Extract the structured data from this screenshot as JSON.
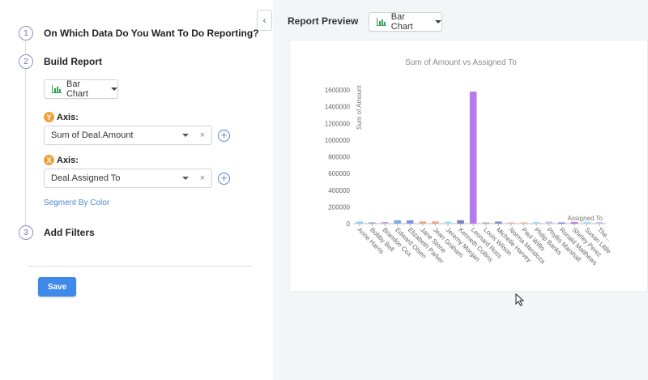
{
  "steps": [
    {
      "num": "1",
      "title": "On Which Data Do You Want To Do Reporting?"
    },
    {
      "num": "2",
      "title": "Build Report"
    },
    {
      "num": "3",
      "title": "Add Filters"
    }
  ],
  "build": {
    "chart_type_label": "Bar Chart",
    "y_axis": {
      "badge": "Y",
      "label": "Axis:",
      "value": "Sum of Deal.Amount"
    },
    "x_axis": {
      "badge": "X",
      "label": "Axis:",
      "value": "Deal.Assigned To"
    },
    "clear_glyph": "×",
    "plus_glyph": "+",
    "segment_link": "Segment By Color"
  },
  "save_label": "Save",
  "collapse_glyph": "‹",
  "preview": {
    "title": "Report Preview",
    "chart_type_label": "Bar Chart"
  },
  "colors": {
    "accent": "#3f8ae8",
    "axis_badge": "#f0a23c",
    "bar_highlight": "#b57bea"
  },
  "chart_data": {
    "type": "bar",
    "title": "Sum of Amount vs Assigned To",
    "xlabel": "Assigned To",
    "ylabel": "Sum of Amount",
    "ylim": [
      0,
      1700000
    ],
    "yticks": [
      "0",
      "200000",
      "400000",
      "600000",
      "800000",
      "1000000",
      "1200000",
      "1400000",
      "1600000"
    ],
    "ytick_values": [
      0,
      200000,
      400000,
      600000,
      800000,
      1000000,
      1200000,
      1400000,
      1600000
    ],
    "categories": [
      "Anne Harris",
      "Bobby Bell",
      "Brandon Cox",
      "Edward Olsen",
      "Elizabeth Parker",
      "Jane Stone",
      "Jean Graham",
      "Jeremy Morgan",
      "Kenneth Collins",
      "Leonard Ross",
      "Louis Wilson",
      "Michelle Harvey",
      "Norma Mendoza",
      "Paul Willis",
      "Philip Banks",
      "Phyllis Marshall",
      "Ronald Matthews",
      "Shirley Perez",
      "Susan Little",
      "The..."
    ],
    "values": [
      25000,
      15000,
      20000,
      40000,
      40000,
      25000,
      25000,
      25000,
      40000,
      1580000,
      10000,
      25000,
      10000,
      15000,
      20000,
      25000,
      15000,
      20000,
      20000,
      20000
    ],
    "bar_colors": [
      "#8fd3f0",
      "#a6a6c8",
      "#c9a3e8",
      "#7fa7f0",
      "#7f92e0",
      "#f0a08a",
      "#f0a08a",
      "#a6dff0",
      "#7a7fcc",
      "#b57bea",
      "#a6b0b8",
      "#8a88d0",
      "#f0b0b0",
      "#f0b8a0",
      "#a6dff0",
      "#c0c4f0",
      "#8a88d0",
      "#b57bea",
      "#a6dff0",
      "#c0c4f0"
    ]
  }
}
